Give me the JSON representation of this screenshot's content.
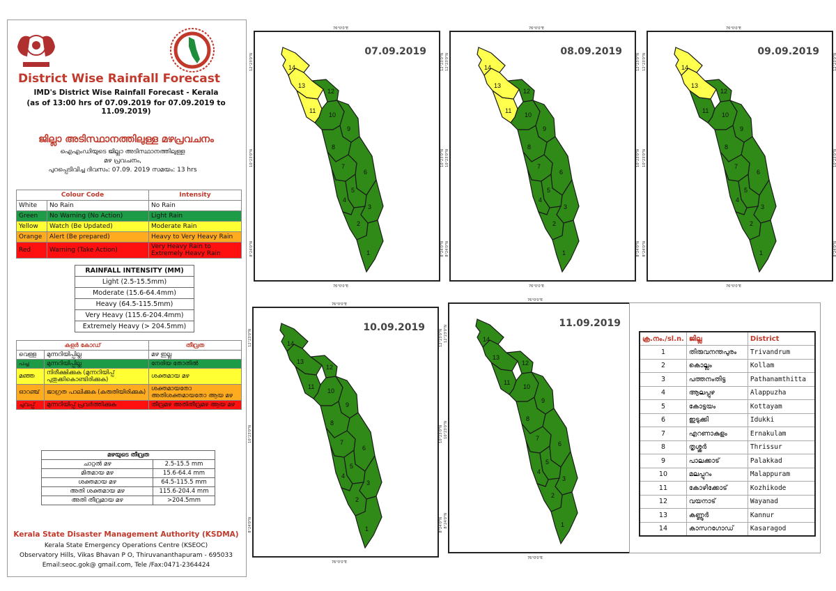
{
  "header": {
    "title": "District Wise Rainfall Forecast",
    "subtitle1": "IMD's District Wise Rainfall Forecast - Kerala",
    "subtitle2": "(as of 13:00 hrs of 07.09.2019  for 07.09.2019  to 11.09.2019)",
    "mal_title": "ജില്ലാ അടിസ്ഥാനത്തിലുള്ള മഴപ്രവചനം",
    "mal_sub1": "ഐഎംഡിയുടെ ജില്ലാ  അടിസ്ഥാനത്തിലുള്ള",
    "mal_sub2": "മഴ പ്രവചനം,",
    "mal_sub3": "പുറപ്പെടിവിച്ച   ദിവസം:  07.09. 2019   സമയം: 13 hrs"
  },
  "colour_code": {
    "head_colour": "Colour Code",
    "head_intensity": "Intensity",
    "rows": [
      {
        "colour": "White",
        "code": "No Rain",
        "intensity": "No Rain",
        "bg": "#ffffff"
      },
      {
        "colour": "Green",
        "code": "No Warning (No Action)",
        "intensity": "Light Rain",
        "bg": "#1e9b47"
      },
      {
        "colour": "Yellow",
        "code": "Watch (Be Updated)",
        "intensity": "Moderate Rain",
        "bg": "#ffff33"
      },
      {
        "colour": "Orange",
        "code": "Alert (Be prepared)",
        "intensity": "Heavy to Very Heavy Rain",
        "bg": "#ffab1f"
      },
      {
        "colour": "Red",
        "code": "Warning (Take Action)",
        "intensity": "Very Heavy Rain to Extremely Heavy Rain",
        "bg": "#ff1010"
      }
    ]
  },
  "rainfall_intensity": {
    "title": "RAINFALL INTENSITY (MM)",
    "rows": [
      "Light (2.5-15.5mm)",
      "Moderate (15.6-64.4mm)",
      "Heavy (64.5-115.5mm)",
      "Very Heavy (115.6-204.4mm)",
      "Extremely Heavy (> 204.5mm)"
    ]
  },
  "mal_colour_code": {
    "head_colour": "കളർ കോഡ്",
    "head_intensity": "തീവ്രത",
    "rows": [
      {
        "colour": "വെള്ള",
        "code": "മുന്നറിയിപ്പില്ല",
        "intensity": "മഴ ഇല്ല"
      },
      {
        "colour": "പച്ച",
        "code": "മുന്നറിയിപ്പില്ല",
        "intensity": "നേരിയ തോതിൽ"
      },
      {
        "colour": "മഞ്ഞ",
        "code": "നിരീക്ഷിക്കുക (മുന്നറിയിപ്പ് പുതുക്കികൊണ്ടിരിക്കുക)",
        "intensity": "ശക്തമായ മഴ"
      },
      {
        "colour": "ഓറഞ്ച്",
        "code": "ജാഗ്രത പാലിക്കുക (കരുതിയിരിക്കുക)",
        "intensity": "ശക്തമായതോ അതിശക്തമായതോ ആയ മഴ"
      },
      {
        "colour": "ചുവപ്പ്",
        "code": "മുന്നറിയിപ്പ് പ്രവർത്തിക്കുക",
        "intensity": "തീവ്രമഴ അതിതീവ്രമഴ ആയ മഴ"
      }
    ]
  },
  "mal_intensity": {
    "title": "മഴയുടെ തീവ്രത",
    "rows": [
      {
        "name": "ചാറ്റൽ മഴ",
        "range": "2.5-15.5 mm"
      },
      {
        "name": "മിതമായ മഴ",
        "range": "15.6-64.4 mm"
      },
      {
        "name": "ശക്തമായ മഴ",
        "range": "64.5-115.5 mm"
      },
      {
        "name": "അതി ശക്തമായ മഴ",
        "range": "115.6-204.4 mm"
      },
      {
        "name": "അതി തീവ്രമായ മഴ",
        "range": ">204.5mm"
      }
    ]
  },
  "footer": {
    "org": "Kerala State Disaster Management Authority (KSDMA)",
    "line2": "Kerala State Emergency Operations Centre (KSEOC)",
    "line3": "Observatory Hills, Vikas Bhavan P O, Thiruvananthapuram - 695033",
    "line4": "Email:seoc.gok@ gmail.com, Tele /Fax:0471-2364424"
  },
  "coords": {
    "lon": "76°0'0\"E",
    "lat_top": "12°23'0\"N",
    "lat_mid": "10°23'0\"N",
    "lat_bot": "8°24'0\"N"
  },
  "maps": [
    {
      "date": "07.09.2019",
      "yellow": [
        11,
        13,
        14
      ]
    },
    {
      "date": "08.09.2019",
      "yellow": [
        11,
        13,
        14
      ]
    },
    {
      "date": "09.09.2019",
      "yellow": [
        13,
        14
      ]
    },
    {
      "date": "10.09.2019",
      "yellow": []
    },
    {
      "date": "11.09.2019",
      "yellow": []
    }
  ],
  "map_colors": {
    "green": "#2f8a17",
    "yellow": "#ffff4d"
  },
  "districts": {
    "head_no": "ക്ര.നം./sl.n.",
    "head_mal": "ജില്ല",
    "head_en": "District",
    "rows": [
      {
        "no": "1",
        "mal": "തിരുവനന്തപുരം",
        "en": "Trivandrum"
      },
      {
        "no": "2",
        "mal": "കൊല്ലം",
        "en": "Kollam"
      },
      {
        "no": "3",
        "mal": "പത്തനംതിട്ട",
        "en": "Pathanamthitta"
      },
      {
        "no": "4",
        "mal": "ആലപ്പുഴ",
        "en": "Alappuzha"
      },
      {
        "no": "5",
        "mal": "കോട്ടയം",
        "en": "Kottayam"
      },
      {
        "no": "6",
        "mal": "ഇടുക്കി",
        "en": "Idukki"
      },
      {
        "no": "7",
        "mal": "എറണാകുളം",
        "en": "Ernakulam"
      },
      {
        "no": "8",
        "mal": "തൃശ്ശൂർ",
        "en": "Thrissur"
      },
      {
        "no": "9",
        "mal": "പാലക്കാട്",
        "en": "Palakkad"
      },
      {
        "no": "10",
        "mal": "മലപ്പുറം",
        "en": "Malappuram"
      },
      {
        "no": "11",
        "mal": "കോഴിക്കോട്",
        "en": "Kozhikode"
      },
      {
        "no": "12",
        "mal": "വയനാട്",
        "en": "Wayanad"
      },
      {
        "no": "13",
        "mal": "കണ്ണൂർ",
        "en": "Kannur"
      },
      {
        "no": "14",
        "mal": "കാസറഗോഡ്",
        "en": "Kasaragod"
      }
    ]
  }
}
